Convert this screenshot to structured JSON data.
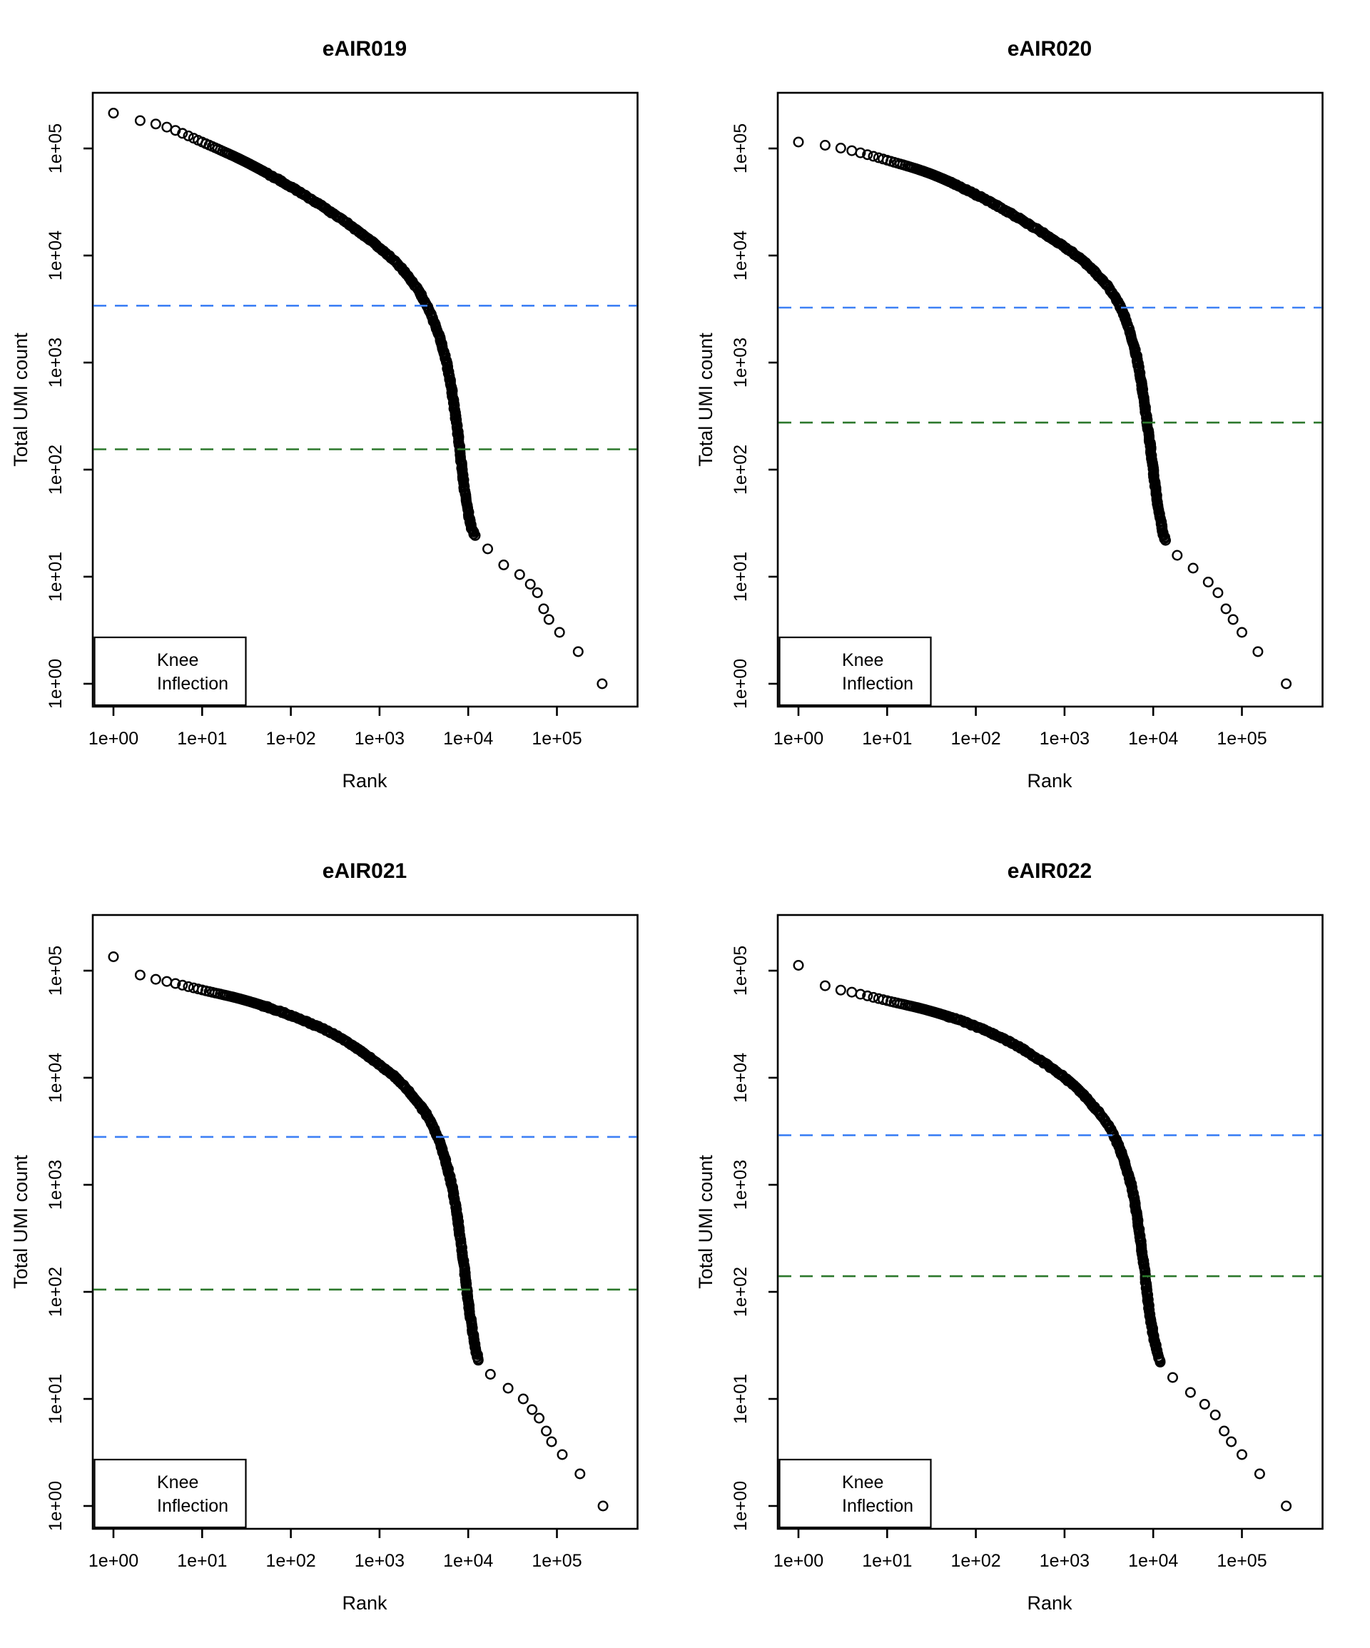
{
  "figure": {
    "background": "#ffffff"
  },
  "colors": {
    "knee": "#3D80F5",
    "inflection": "#2C782C",
    "points": "#000000",
    "axis": "#000000"
  },
  "legend": {
    "items": [
      {
        "label": "Knee",
        "color_key": "knee"
      },
      {
        "label": "Inflection",
        "color_key": "inflection"
      }
    ]
  },
  "axes": {
    "x_label": "Rank",
    "y_label": "Total UMI count",
    "x_ticks": [
      "1e+00",
      "1e+01",
      "1e+02",
      "1e+03",
      "1e+04",
      "1e+05"
    ],
    "y_ticks": [
      "1e+00",
      "1e+01",
      "1e+02",
      "1e+03",
      "1e+04",
      "1e+05"
    ],
    "x_log_range": [
      -0.23,
      5.91
    ],
    "y_log_range": [
      -0.21,
      5.52
    ],
    "grid": false
  },
  "chart_data": [
    {
      "type": "scatter",
      "title": "eAIR019",
      "xlabel": "Rank",
      "ylabel": "Total UMI count",
      "x_scale": "log10",
      "y_scale": "log10",
      "x_range": [
        1,
        320000
      ],
      "y_range": [
        1,
        210000
      ],
      "knee": 3400,
      "inflection": 155,
      "curve_log10": [
        [
          0,
          5.33
        ],
        [
          0.3,
          5.26
        ],
        [
          0.6,
          5.2
        ],
        [
          1,
          5.06
        ],
        [
          1.5,
          4.87
        ],
        [
          2,
          4.64
        ],
        [
          2.5,
          4.38
        ],
        [
          3,
          4.07
        ],
        [
          3.3,
          3.83
        ],
        [
          3.55,
          3.5
        ],
        [
          3.75,
          3.02
        ],
        [
          3.87,
          2.42
        ],
        [
          3.96,
          1.8
        ],
        [
          4.03,
          1.48
        ],
        [
          4.08,
          1.38
        ]
      ],
      "tail_log10": [
        [
          4.22,
          1.26
        ],
        [
          4.4,
          1.11
        ],
        [
          4.58,
          1.02
        ],
        [
          4.7,
          0.93
        ],
        [
          4.78,
          0.85
        ],
        [
          4.85,
          0.7
        ],
        [
          4.91,
          0.6
        ],
        [
          5.03,
          0.48
        ],
        [
          5.24,
          0.3
        ],
        [
          5.51,
          0
        ]
      ]
    },
    {
      "type": "scatter",
      "title": "eAIR020",
      "xlabel": "Rank",
      "ylabel": "Total UMI count",
      "x_scale": "log10",
      "y_scale": "log10",
      "x_range": [
        1,
        316000
      ],
      "y_range": [
        1,
        115000
      ],
      "knee": 3260,
      "inflection": 275,
      "curve_log10": [
        [
          0,
          5.06
        ],
        [
          0.3,
          5.03
        ],
        [
          0.6,
          4.98
        ],
        [
          1,
          4.89
        ],
        [
          1.5,
          4.76
        ],
        [
          2,
          4.57
        ],
        [
          2.5,
          4.34
        ],
        [
          3,
          4.08
        ],
        [
          3.3,
          3.88
        ],
        [
          3.6,
          3.57
        ],
        [
          3.8,
          3.1
        ],
        [
          3.93,
          2.45
        ],
        [
          4.03,
          1.8
        ],
        [
          4.1,
          1.45
        ],
        [
          4.14,
          1.33
        ]
      ],
      "tail_log10": [
        [
          4.27,
          1.2
        ],
        [
          4.45,
          1.08
        ],
        [
          4.62,
          0.95
        ],
        [
          4.73,
          0.85
        ],
        [
          4.82,
          0.7
        ],
        [
          4.9,
          0.6
        ],
        [
          5,
          0.48
        ],
        [
          5.18,
          0.3
        ],
        [
          5.5,
          0
        ]
      ]
    },
    {
      "type": "scatter",
      "title": "eAIR021",
      "xlabel": "Rank",
      "ylabel": "Total UMI count",
      "x_scale": "log10",
      "y_scale": "log10",
      "x_range": [
        1,
        330000
      ],
      "y_range": [
        1,
        135000
      ],
      "knee": 2800,
      "inflection": 105,
      "curve_log10": [
        [
          0,
          5.13
        ],
        [
          0.3,
          4.96
        ],
        [
          0.6,
          4.9
        ],
        [
          1,
          4.82
        ],
        [
          1.5,
          4.72
        ],
        [
          2,
          4.58
        ],
        [
          2.5,
          4.4
        ],
        [
          3,
          4.12
        ],
        [
          3.3,
          3.9
        ],
        [
          3.6,
          3.55
        ],
        [
          3.8,
          3.05
        ],
        [
          3.92,
          2.45
        ],
        [
          4.01,
          1.85
        ],
        [
          4.08,
          1.48
        ],
        [
          4.12,
          1.36
        ]
      ],
      "tail_log10": [
        [
          4.25,
          1.23
        ],
        [
          4.45,
          1.1
        ],
        [
          4.62,
          1
        ],
        [
          4.72,
          0.9
        ],
        [
          4.8,
          0.82
        ],
        [
          4.88,
          0.7
        ],
        [
          4.94,
          0.6
        ],
        [
          5.06,
          0.48
        ],
        [
          5.26,
          0.3
        ],
        [
          5.52,
          0
        ]
      ]
    },
    {
      "type": "scatter",
      "title": "eAIR022",
      "xlabel": "Rank",
      "ylabel": "Total UMI count",
      "x_scale": "log10",
      "y_scale": "log10",
      "x_range": [
        1,
        316000
      ],
      "y_range": [
        1,
        112000
      ],
      "knee": 2900,
      "inflection": 140,
      "curve_log10": [
        [
          0,
          5.05
        ],
        [
          0.3,
          4.86
        ],
        [
          0.6,
          4.8
        ],
        [
          1,
          4.72
        ],
        [
          1.5,
          4.62
        ],
        [
          2,
          4.48
        ],
        [
          2.5,
          4.28
        ],
        [
          3,
          4
        ],
        [
          3.3,
          3.76
        ],
        [
          3.55,
          3.47
        ],
        [
          3.75,
          3
        ],
        [
          3.87,
          2.4
        ],
        [
          3.96,
          1.8
        ],
        [
          4.04,
          1.45
        ],
        [
          4.09,
          1.33
        ]
      ],
      "tail_log10": [
        [
          4.22,
          1.2
        ],
        [
          4.42,
          1.06
        ],
        [
          4.58,
          0.95
        ],
        [
          4.7,
          0.85
        ],
        [
          4.8,
          0.7
        ],
        [
          4.88,
          0.6
        ],
        [
          5,
          0.48
        ],
        [
          5.2,
          0.3
        ],
        [
          5.5,
          0
        ]
      ]
    }
  ]
}
